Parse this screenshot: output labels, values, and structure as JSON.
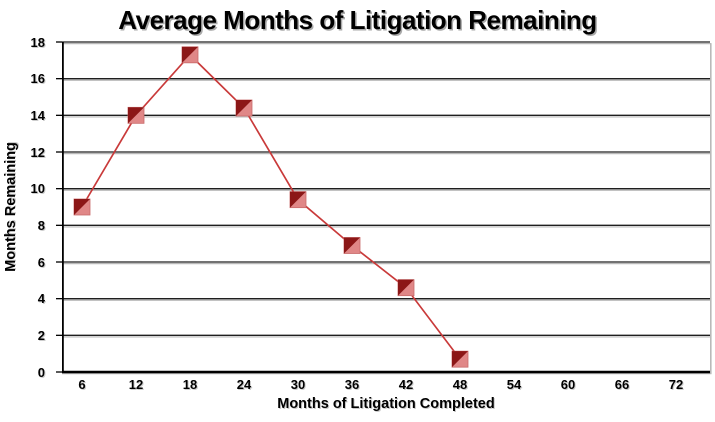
{
  "title": "Average Months of Litigation Remaining",
  "chart_data": {
    "type": "line",
    "title": "Average Months of Litigation Remaining",
    "xlabel": "Months of Litigation Completed",
    "ylabel": "Months Remaining",
    "x": [
      6,
      12,
      18,
      24,
      30,
      36,
      42,
      48
    ],
    "values": [
      9.0,
      14.0,
      17.3,
      14.4,
      9.4,
      6.9,
      4.6,
      0.7
    ],
    "xticks": [
      6,
      12,
      18,
      24,
      30,
      36,
      42,
      48,
      54,
      60,
      66,
      72
    ],
    "yticks": [
      0,
      2,
      4,
      6,
      8,
      10,
      12,
      14,
      16,
      18
    ],
    "xlim": [
      0,
      78
    ],
    "ylim": [
      0,
      18
    ],
    "grid": "horizontal",
    "legend": "none",
    "line_color": "#c93a3a",
    "marker_style": "two-tone-square",
    "marker_dark_color": "#8c1717",
    "marker_light_color": "#e08787",
    "gridline_color": "#1f1f1f",
    "gridline_shadow_color": "#b9b9b9",
    "axis_color": "#000000"
  }
}
